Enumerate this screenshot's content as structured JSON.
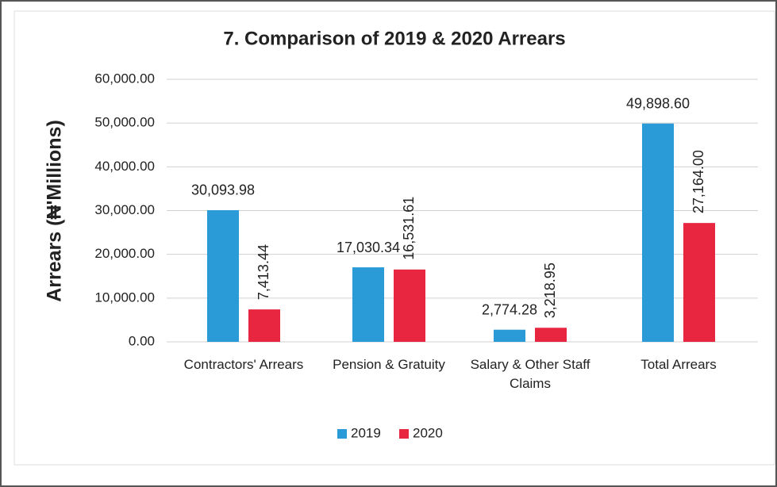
{
  "chart_data": {
    "type": "bar",
    "title": "7. Comparison of 2019 & 2020 Arrears",
    "y_label": "Arrears (₦'Millions)",
    "categories": [
      "Contractors' Arrears",
      "Pension & Gratuity",
      "Salary & Other Staff Claims",
      "Total Arrears"
    ],
    "series": [
      {
        "name": "2019",
        "color": "#2b9bd8",
        "values": [
          30093.98,
          17030.34,
          2774.28,
          49898.6
        ],
        "value_labels": [
          "30,093.98",
          "17,030.34",
          "2,774.28",
          "49,898.60"
        ]
      },
      {
        "name": "2020",
        "color": "#e8263f",
        "values": [
          7413.44,
          16531.61,
          3218.95,
          27164.0
        ],
        "value_labels": [
          "7,413.44",
          "16,531.61",
          "3,218.95",
          "27,164.00"
        ]
      }
    ],
    "ylim": [
      0,
      60000
    ],
    "yticks": [
      {
        "value": 0,
        "label": "0.00"
      },
      {
        "value": 10000,
        "label": "10,000.00"
      },
      {
        "value": 20000,
        "label": "20,000.00"
      },
      {
        "value": 30000,
        "label": "30,000.00"
      },
      {
        "value": 40000,
        "label": "40,000.00"
      },
      {
        "value": 50000,
        "label": "50,000.00"
      },
      {
        "value": 60000,
        "label": "60,000.00"
      }
    ],
    "grid": true,
    "legend": "bottom"
  }
}
